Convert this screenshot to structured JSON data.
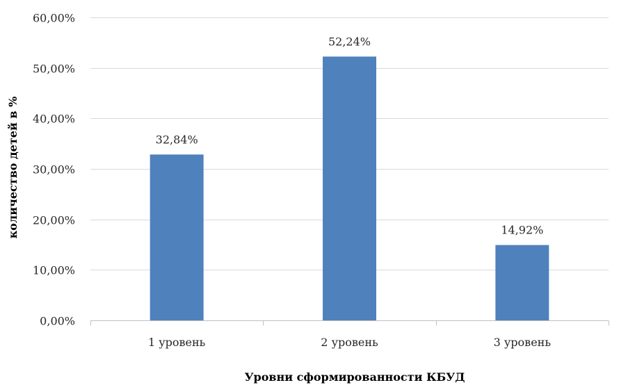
{
  "chart_data": {
    "type": "bar",
    "categories": [
      "1 уровень",
      "2 уровень",
      "3 уровень"
    ],
    "values": [
      32.84,
      52.24,
      14.92
    ],
    "data_labels": [
      "32,84%",
      "52,24%",
      "14,92%"
    ],
    "ylim": [
      0,
      60
    ],
    "yticks": [
      0,
      10,
      20,
      30,
      40,
      50,
      60
    ],
    "ytick_labels": [
      "0,00%",
      "10,00%",
      "20,00%",
      "30,00%",
      "40,00%",
      "50,00%",
      "60,00%"
    ],
    "xlabel": "Уровни сформированности КБУД",
    "ylabel": "количество детей в %",
    "grid": true,
    "bar_color": "#4f81bd"
  }
}
